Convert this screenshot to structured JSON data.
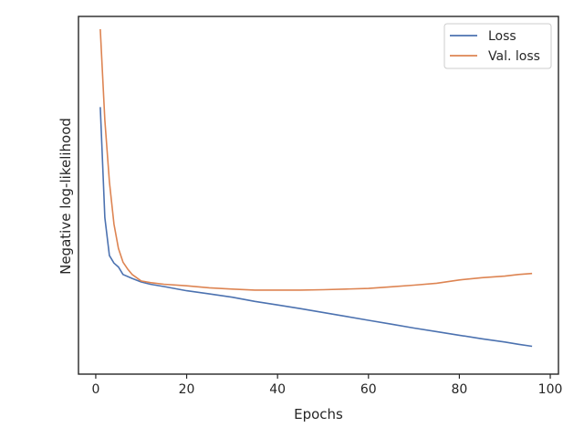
{
  "chart_data": {
    "type": "line",
    "title": "",
    "xlabel": "Epochs",
    "ylabel": "Negative log-likelihood",
    "xlim": [
      -3.8,
      101.8
    ],
    "ylim": [
      0,
      1
    ],
    "xticks": [
      0,
      20,
      40,
      60,
      80,
      100
    ],
    "yticks_shown": false,
    "grid": false,
    "legend_position": "top-right",
    "series": [
      {
        "name": "Loss",
        "color": "#4c72b0",
        "x": [
          1,
          2,
          3,
          4,
          5,
          6,
          8,
          10,
          12,
          15,
          20,
          25,
          30,
          35,
          40,
          45,
          50,
          55,
          60,
          65,
          70,
          75,
          80,
          85,
          90,
          93,
          96
        ],
        "y": [
          0.76,
          0.42,
          0.303,
          0.28,
          0.268,
          0.245,
          0.233,
          0.222,
          0.215,
          0.208,
          0.195,
          0.185,
          0.175,
          0.162,
          0.151,
          0.14,
          0.128,
          0.116,
          0.104,
          0.092,
          0.08,
          0.069,
          0.058,
          0.047,
          0.037,
          0.03,
          0.024
        ]
      },
      {
        "name": "Val. loss",
        "color": "#dd8452",
        "x": [
          1,
          2,
          3,
          4,
          5,
          6,
          7,
          8,
          10,
          12,
          15,
          20,
          25,
          30,
          35,
          40,
          45,
          50,
          55,
          60,
          65,
          70,
          75,
          80,
          85,
          90,
          93,
          96
        ],
        "y": [
          1.0,
          0.72,
          0.53,
          0.4,
          0.325,
          0.283,
          0.262,
          0.245,
          0.225,
          0.22,
          0.215,
          0.21,
          0.204,
          0.2,
          0.197,
          0.197,
          0.197,
          0.198,
          0.2,
          0.202,
          0.207,
          0.212,
          0.218,
          0.228,
          0.235,
          0.24,
          0.245,
          0.248
        ]
      }
    ]
  }
}
